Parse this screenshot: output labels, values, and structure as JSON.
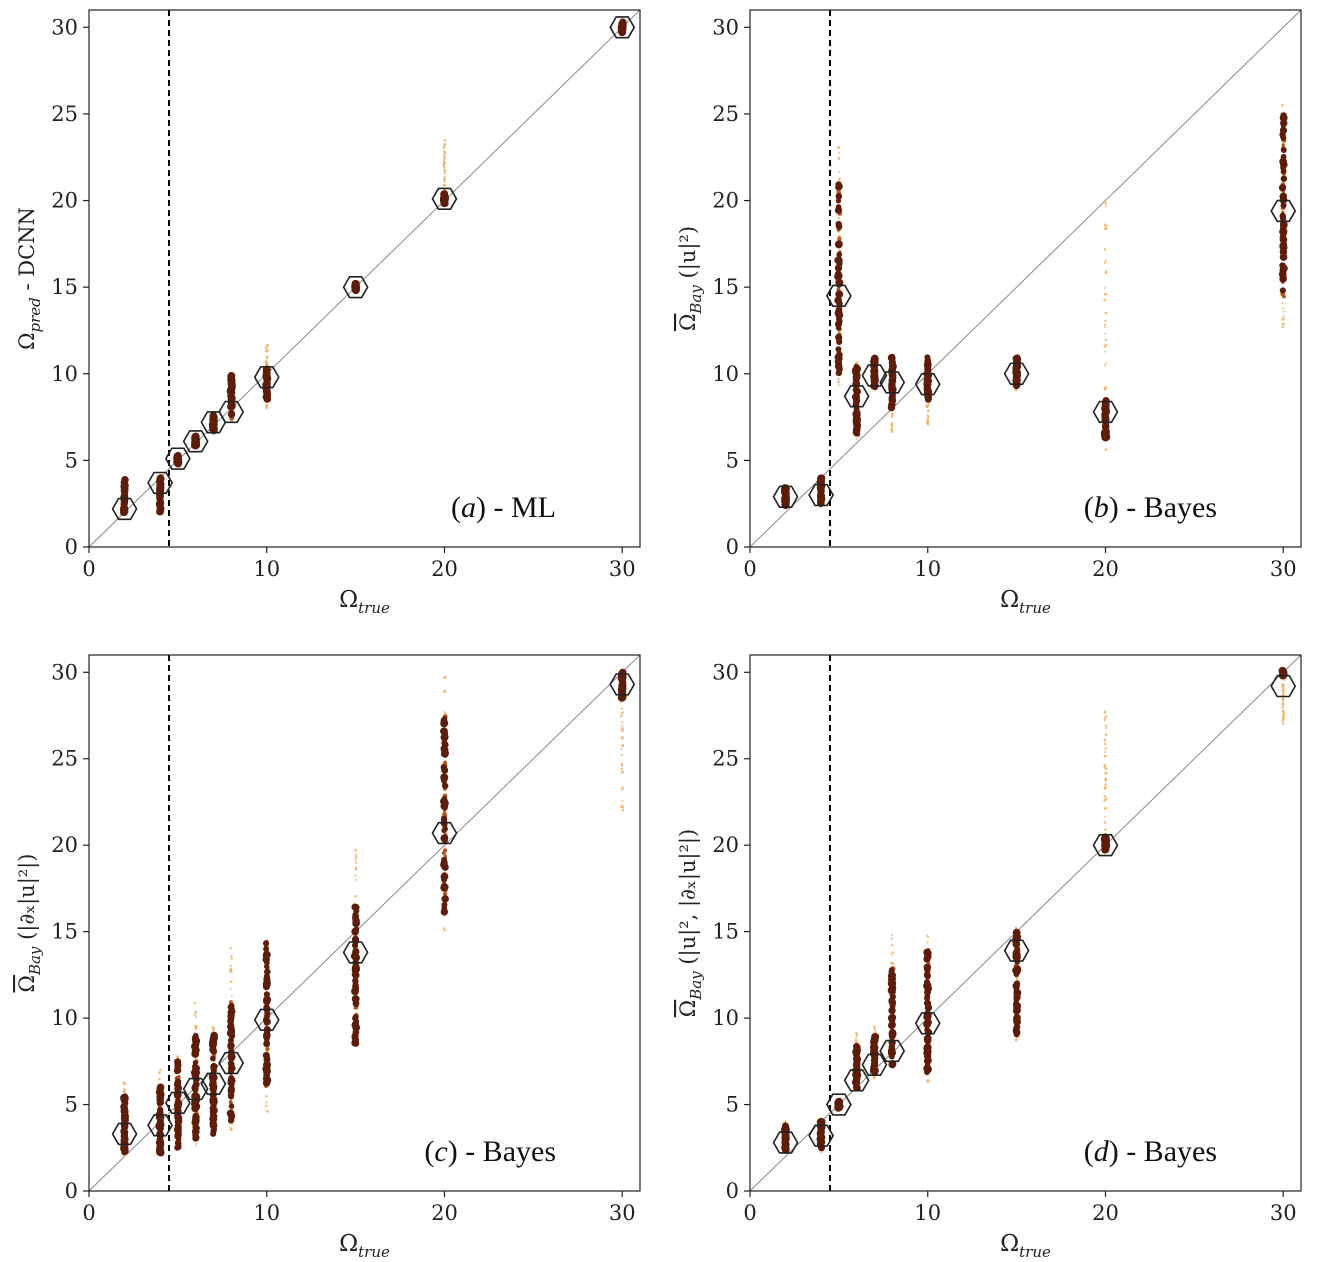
{
  "chart_data": [
    {
      "type": "scatter",
      "panel_label": "(a) - ML",
      "panel_label_parts": {
        "pre": "(",
        "letter": "a",
        "post": ") - ML"
      },
      "ylabel": {
        "symbol": "Ω",
        "sub": "pred",
        "rest": " - DCNN",
        "overline": false
      },
      "xlabel": {
        "symbol": "Ω",
        "sub": "true"
      },
      "xlim": [
        0,
        31
      ],
      "ylim": [
        0,
        31
      ],
      "xticks": [
        "0",
        "10",
        "20",
        "30"
      ],
      "yticks": [
        "0",
        "5",
        "10",
        "15",
        "20",
        "25",
        "30"
      ],
      "threshold_x": 4.5,
      "diagonal": true,
      "means": [
        {
          "x": 2,
          "y": 2.2
        },
        {
          "x": 4,
          "y": 3.7
        },
        {
          "x": 5,
          "y": 5.1
        },
        {
          "x": 6,
          "y": 6.1
        },
        {
          "x": 7,
          "y": 7.2
        },
        {
          "x": 8,
          "y": 7.8
        },
        {
          "x": 10,
          "y": 9.8
        },
        {
          "x": 15,
          "y": 15.0
        },
        {
          "x": 20,
          "y": 20.1
        },
        {
          "x": 30,
          "y": 30.0
        }
      ],
      "scatter": [
        {
          "x": 2,
          "ymin": 1.9,
          "ymax": 3.9,
          "core_min": 2.0,
          "core_max": 3.9
        },
        {
          "x": 4,
          "ymin": 2.0,
          "ymax": 4.2,
          "core_min": 2.0,
          "core_max": 4.1
        },
        {
          "x": 5,
          "ymin": 4.8,
          "ymax": 5.4,
          "core_min": 4.8,
          "core_max": 5.3
        },
        {
          "x": 6,
          "ymin": 5.7,
          "ymax": 6.5,
          "core_min": 5.8,
          "core_max": 6.4
        },
        {
          "x": 7,
          "ymin": 6.5,
          "ymax": 7.9,
          "core_min": 6.7,
          "core_max": 7.7
        },
        {
          "x": 8,
          "ymin": 7.2,
          "ymax": 10.0,
          "core_min": 7.4,
          "core_max": 10.0
        },
        {
          "x": 10,
          "ymin": 8.0,
          "ymax": 11.8,
          "core_min": 8.5,
          "core_max": 10.3
        },
        {
          "x": 15,
          "ymin": 14.7,
          "ymax": 15.3,
          "core_min": 14.8,
          "core_max": 15.2
        },
        {
          "x": 20,
          "ymin": 19.7,
          "ymax": 23.5,
          "core_min": 19.8,
          "core_max": 20.4
        },
        {
          "x": 30,
          "ymin": 29.7,
          "ymax": 30.3,
          "core_min": 29.7,
          "core_max": 30.3
        }
      ]
    },
    {
      "type": "scatter",
      "panel_label": "(b) - Bayes",
      "panel_label_parts": {
        "pre": "(",
        "letter": "b",
        "post": ") - Bayes"
      },
      "ylabel": {
        "symbol": "Ω",
        "sub": "Bay",
        "rest": " (|u|²)",
        "overline": true
      },
      "xlabel": {
        "symbol": "Ω",
        "sub": "true"
      },
      "xlim": [
        0,
        31
      ],
      "ylim": [
        0,
        31
      ],
      "xticks": [
        "0",
        "10",
        "20",
        "30"
      ],
      "yticks": [
        "0",
        "5",
        "10",
        "15",
        "20",
        "25",
        "30"
      ],
      "threshold_x": 4.5,
      "diagonal": true,
      "means": [
        {
          "x": 2,
          "y": 2.9
        },
        {
          "x": 4,
          "y": 3.0
        },
        {
          "x": 5,
          "y": 14.5
        },
        {
          "x": 6,
          "y": 8.7
        },
        {
          "x": 7,
          "y": 9.9
        },
        {
          "x": 8,
          "y": 9.5
        },
        {
          "x": 10,
          "y": 9.4
        },
        {
          "x": 15,
          "y": 10.0
        },
        {
          "x": 20,
          "y": 7.8
        },
        {
          "x": 30,
          "y": 19.4
        }
      ],
      "scatter": [
        {
          "x": 2,
          "ymin": 2.3,
          "ymax": 3.5,
          "core_min": 2.4,
          "core_max": 3.4
        },
        {
          "x": 4,
          "ymin": 2.3,
          "ymax": 4.1,
          "core_min": 2.5,
          "core_max": 4.0
        },
        {
          "x": 5,
          "ymin": 9.0,
          "ymax": 23.3,
          "core_min": 10.0,
          "core_max": 21.0
        },
        {
          "x": 6,
          "ymin": 6.2,
          "ymax": 10.8,
          "core_min": 6.5,
          "core_max": 10.5
        },
        {
          "x": 7,
          "ymin": 9.0,
          "ymax": 11.0,
          "core_min": 9.2,
          "core_max": 10.9
        },
        {
          "x": 8,
          "ymin": 6.6,
          "ymax": 11.1,
          "core_min": 8.0,
          "core_max": 11.0
        },
        {
          "x": 10,
          "ymin": 7.0,
          "ymax": 11.1,
          "core_min": 8.5,
          "core_max": 11.0
        },
        {
          "x": 15,
          "ymin": 9.0,
          "ymax": 11.1,
          "core_min": 9.3,
          "core_max": 10.9
        },
        {
          "x": 20,
          "ymin": 5.0,
          "ymax": 20.0,
          "core_min": 6.2,
          "core_max": 8.5
        },
        {
          "x": 30,
          "ymin": 12.7,
          "ymax": 25.8,
          "core_min": 14.3,
          "core_max": 25.0
        }
      ]
    },
    {
      "type": "scatter",
      "panel_label": "(c) - Bayes",
      "panel_label_parts": {
        "pre": "(",
        "letter": "c",
        "post": ") - Bayes"
      },
      "ylabel": {
        "symbol": "Ω",
        "sub": "Bay",
        "rest": " (|∂ₓ|u|²|)",
        "overline": true
      },
      "xlabel": {
        "symbol": "Ω",
        "sub": "true"
      },
      "xlim": [
        0,
        31
      ],
      "ylim": [
        0,
        31
      ],
      "xticks": [
        "0",
        "10",
        "20",
        "30"
      ],
      "yticks": [
        "0",
        "5",
        "10",
        "15",
        "20",
        "25",
        "30"
      ],
      "threshold_x": 4.5,
      "diagonal": true,
      "means": [
        {
          "x": 2,
          "y": 3.3
        },
        {
          "x": 4,
          "y": 3.8
        },
        {
          "x": 5,
          "y": 5.1
        },
        {
          "x": 6,
          "y": 5.9
        },
        {
          "x": 7,
          "y": 6.2
        },
        {
          "x": 8,
          "y": 7.4
        },
        {
          "x": 10,
          "y": 9.9
        },
        {
          "x": 15,
          "y": 13.8
        },
        {
          "x": 20,
          "y": 20.7
        },
        {
          "x": 30,
          "y": 29.3
        }
      ],
      "scatter": [
        {
          "x": 2,
          "ymin": 2.0,
          "ymax": 6.3,
          "core_min": 2.2,
          "core_max": 5.5
        },
        {
          "x": 4,
          "ymin": 2.0,
          "ymax": 7.1,
          "core_min": 2.2,
          "core_max": 6.0
        },
        {
          "x": 5,
          "ymin": 2.0,
          "ymax": 8.2,
          "core_min": 2.5,
          "core_max": 7.5
        },
        {
          "x": 6,
          "ymin": 2.6,
          "ymax": 11.8,
          "core_min": 3.0,
          "core_max": 9.0
        },
        {
          "x": 7,
          "ymin": 3.0,
          "ymax": 9.6,
          "core_min": 3.3,
          "core_max": 9.0
        },
        {
          "x": 8,
          "ymin": 3.5,
          "ymax": 14.5,
          "core_min": 4.0,
          "core_max": 11.0
        },
        {
          "x": 10,
          "ymin": 4.5,
          "ymax": 14.8,
          "core_min": 6.0,
          "core_max": 14.5
        },
        {
          "x": 15,
          "ymin": 8.1,
          "ymax": 19.8,
          "core_min": 8.5,
          "core_max": 16.5
        },
        {
          "x": 20,
          "ymin": 15.0,
          "ymax": 29.9,
          "core_min": 16.0,
          "core_max": 27.5
        },
        {
          "x": 30,
          "ymin": 22.0,
          "ymax": 30.0,
          "core_min": 28.5,
          "core_max": 30.0
        }
      ]
    },
    {
      "type": "scatter",
      "panel_label": "(d) - Bayes",
      "panel_label_parts": {
        "pre": "(",
        "letter": "d",
        "post": ") - Bayes"
      },
      "ylabel": {
        "symbol": "Ω",
        "sub": "Bay",
        "rest": " (|u|², |∂ₓ|u|²|)",
        "overline": true
      },
      "xlabel": {
        "symbol": "Ω",
        "sub": "true"
      },
      "xlim": [
        0,
        31
      ],
      "ylim": [
        0,
        31
      ],
      "xticks": [
        "0",
        "10",
        "20",
        "30"
      ],
      "yticks": [
        "0",
        "5",
        "10",
        "15",
        "20",
        "25",
        "30"
      ],
      "threshold_x": 4.5,
      "diagonal": true,
      "means": [
        {
          "x": 2,
          "y": 2.8
        },
        {
          "x": 4,
          "y": 3.2
        },
        {
          "x": 5,
          "y": 5.0
        },
        {
          "x": 6,
          "y": 6.4
        },
        {
          "x": 7,
          "y": 7.3
        },
        {
          "x": 8,
          "y": 8.1
        },
        {
          "x": 10,
          "y": 9.7
        },
        {
          "x": 15,
          "y": 13.9
        },
        {
          "x": 20,
          "y": 20.0
        },
        {
          "x": 30,
          "y": 29.2
        }
      ],
      "scatter": [
        {
          "x": 2,
          "ymin": 2.2,
          "ymax": 4.0,
          "core_min": 2.3,
          "core_max": 3.8
        },
        {
          "x": 4,
          "ymin": 2.2,
          "ymax": 4.2,
          "core_min": 2.5,
          "core_max": 4.0
        },
        {
          "x": 5,
          "ymin": 4.7,
          "ymax": 5.3,
          "core_min": 4.8,
          "core_max": 5.2
        },
        {
          "x": 6,
          "ymin": 5.8,
          "ymax": 9.2,
          "core_min": 5.9,
          "core_max": 8.5
        },
        {
          "x": 7,
          "ymin": 6.5,
          "ymax": 9.5,
          "core_min": 6.8,
          "core_max": 9.0
        },
        {
          "x": 8,
          "ymin": 7.0,
          "ymax": 14.8,
          "core_min": 7.2,
          "core_max": 13.0
        },
        {
          "x": 10,
          "ymin": 6.0,
          "ymax": 14.8,
          "core_min": 6.8,
          "core_max": 14.0
        },
        {
          "x": 15,
          "ymin": 8.6,
          "ymax": 15.3,
          "core_min": 9.0,
          "core_max": 15.0
        },
        {
          "x": 20,
          "ymin": 19.5,
          "ymax": 28.0,
          "core_min": 19.7,
          "core_max": 20.5
        },
        {
          "x": 30,
          "ymin": 27.0,
          "ymax": 30.1,
          "core_min": 29.8,
          "core_max": 30.1
        }
      ]
    }
  ],
  "colors": {
    "dense": "#5c1e0b",
    "mid": "#b8561a",
    "sparse": "#f0b266",
    "mean_marker": "#222222",
    "diagonal": "#8a8a8a",
    "threshold": "#000000"
  }
}
